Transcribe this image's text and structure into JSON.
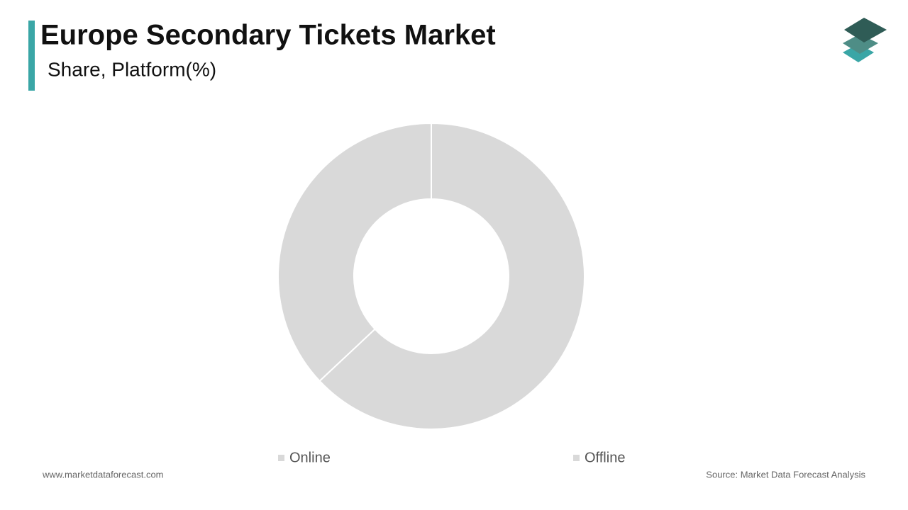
{
  "chart_data": {
    "type": "donut",
    "title": "Europe Secondary Tickets Market",
    "subtitle": "Share, Platform(%)",
    "categories": [
      "Online",
      "Offline"
    ],
    "values": [
      63,
      37
    ],
    "colors": [
      "#d9d9d9",
      "#d9d9d9"
    ]
  },
  "footer": {
    "website": "www.marketdataforecast.com",
    "source": "Source: Market Data Forecast Analysis"
  }
}
